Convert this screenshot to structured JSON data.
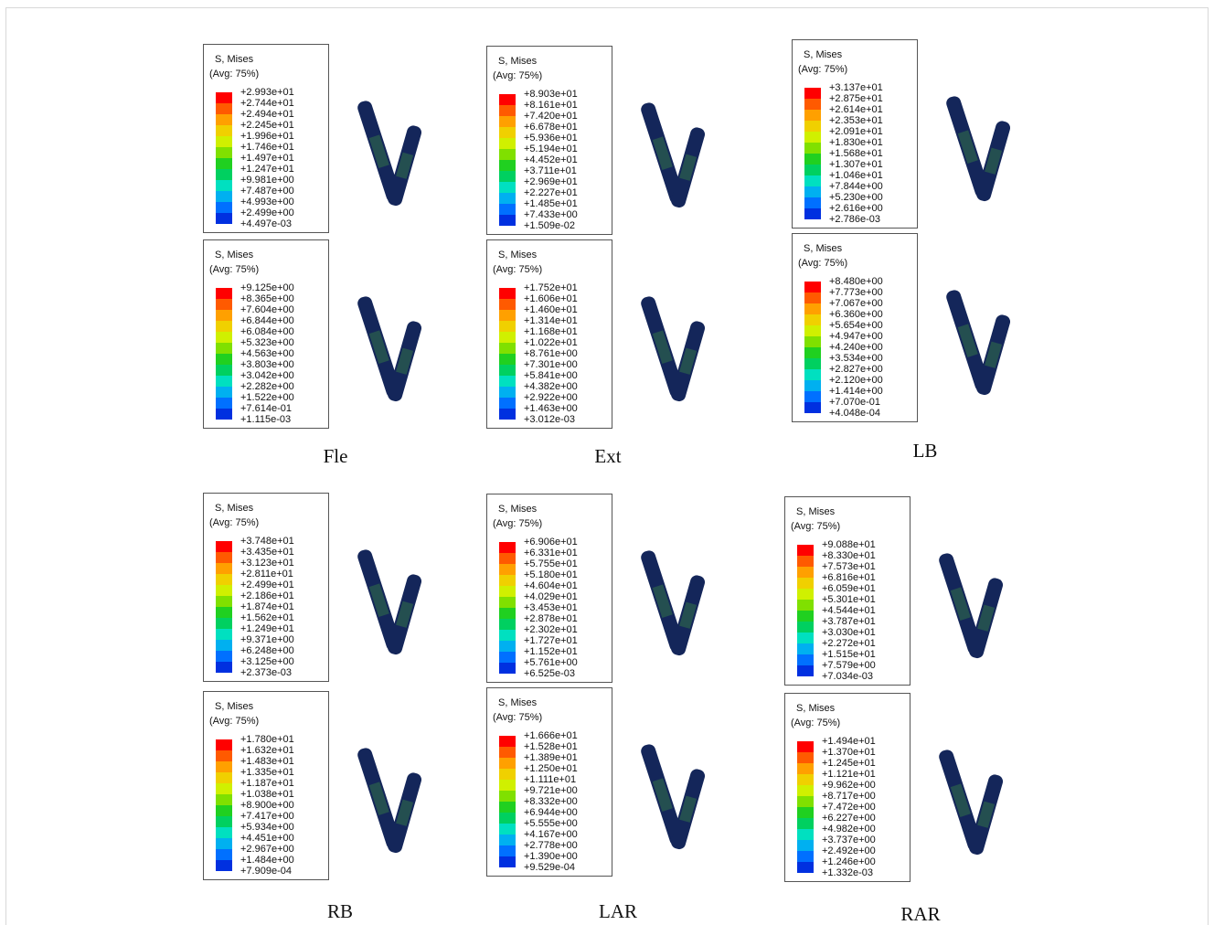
{
  "groups": [
    {
      "caption": "Fle",
      "panels": [
        {
          "title": "S, Mises",
          "avg": "(Avg: 75%)",
          "labels": [
            "+2.993e+01",
            "+2.744e+01",
            "+2.494e+01",
            "+2.245e+01",
            "+1.996e+01",
            "+1.746e+01",
            "+1.497e+01",
            "+1.247e+01",
            "+9.981e+00",
            "+7.487e+00",
            "+4.993e+00",
            "+2.499e+00",
            "+4.497e-03"
          ]
        },
        {
          "title": "S, Mises",
          "avg": "(Avg: 75%)",
          "labels": [
            "+9.125e+00",
            "+8.365e+00",
            "+7.604e+00",
            "+6.844e+00",
            "+6.084e+00",
            "+5.323e+00",
            "+4.563e+00",
            "+3.803e+00",
            "+3.042e+00",
            "+2.282e+00",
            "+1.522e+00",
            "+7.614e-01",
            "+1.115e-03"
          ]
        }
      ]
    },
    {
      "caption": "Ext",
      "panels": [
        {
          "title": "S, Mises",
          "avg": "(Avg: 75%)",
          "labels": [
            "+8.903e+01",
            "+8.161e+01",
            "+7.420e+01",
            "+6.678e+01",
            "+5.936e+01",
            "+5.194e+01",
            "+4.452e+01",
            "+3.711e+01",
            "+2.969e+01",
            "+2.227e+01",
            "+1.485e+01",
            "+7.433e+00",
            "+1.509e-02"
          ]
        },
        {
          "title": "S, Mises",
          "avg": "(Avg: 75%)",
          "labels": [
            "+1.752e+01",
            "+1.606e+01",
            "+1.460e+01",
            "+1.314e+01",
            "+1.168e+01",
            "+1.022e+01",
            "+8.761e+00",
            "+7.301e+00",
            "+5.841e+00",
            "+4.382e+00",
            "+2.922e+00",
            "+1.463e+00",
            "+3.012e-03"
          ]
        }
      ]
    },
    {
      "caption": "LB",
      "panels": [
        {
          "title": "S, Mises",
          "avg": "(Avg: 75%)",
          "labels": [
            "+3.137e+01",
            "+2.875e+01",
            "+2.614e+01",
            "+2.353e+01",
            "+2.091e+01",
            "+1.830e+01",
            "+1.568e+01",
            "+1.307e+01",
            "+1.046e+01",
            "+7.844e+00",
            "+5.230e+00",
            "+2.616e+00",
            "+2.786e-03"
          ]
        },
        {
          "title": "S, Mises",
          "avg": "(Avg: 75%)",
          "labels": [
            "+8.480e+00",
            "+7.773e+00",
            "+7.067e+00",
            "+6.360e+00",
            "+5.654e+00",
            "+4.947e+00",
            "+4.240e+00",
            "+3.534e+00",
            "+2.827e+00",
            "+2.120e+00",
            "+1.414e+00",
            "+7.070e-01",
            "+4.048e-04"
          ]
        }
      ]
    },
    {
      "caption": "RB",
      "panels": [
        {
          "title": "S, Mises",
          "avg": "(Avg: 75%)",
          "labels": [
            "+3.748e+01",
            "+3.435e+01",
            "+3.123e+01",
            "+2.811e+01",
            "+2.499e+01",
            "+2.186e+01",
            "+1.874e+01",
            "+1.562e+01",
            "+1.249e+01",
            "+9.371e+00",
            "+6.248e+00",
            "+3.125e+00",
            "+2.373e-03"
          ]
        },
        {
          "title": "S, Mises",
          "avg": "(Avg: 75%)",
          "labels": [
            "+1.780e+01",
            "+1.632e+01",
            "+1.483e+01",
            "+1.335e+01",
            "+1.187e+01",
            "+1.038e+01",
            "+8.900e+00",
            "+7.417e+00",
            "+5.934e+00",
            "+4.451e+00",
            "+2.967e+00",
            "+1.484e+00",
            "+7.909e-04"
          ]
        }
      ]
    },
    {
      "caption": "LAR",
      "panels": [
        {
          "title": "S, Mises",
          "avg": "(Avg: 75%)",
          "labels": [
            "+6.906e+01",
            "+6.331e+01",
            "+5.755e+01",
            "+5.180e+01",
            "+4.604e+01",
            "+4.029e+01",
            "+3.453e+01",
            "+2.878e+01",
            "+2.302e+01",
            "+1.727e+01",
            "+1.152e+01",
            "+5.761e+00",
            "+6.525e-03"
          ]
        },
        {
          "title": "S, Mises",
          "avg": "(Avg: 75%)",
          "labels": [
            "+1.666e+01",
            "+1.528e+01",
            "+1.389e+01",
            "+1.250e+01",
            "+1.111e+01",
            "+9.721e+00",
            "+8.332e+00",
            "+6.944e+00",
            "+5.555e+00",
            "+4.167e+00",
            "+2.778e+00",
            "+1.390e+00",
            "+9.529e-04"
          ]
        }
      ]
    },
    {
      "caption": "RAR",
      "panels": [
        {
          "title": "S, Mises",
          "avg": "(Avg: 75%)",
          "labels": [
            "+9.088e+01",
            "+8.330e+01",
            "+7.573e+01",
            "+6.816e+01",
            "+6.059e+01",
            "+5.301e+01",
            "+4.544e+01",
            "+3.787e+01",
            "+3.030e+01",
            "+2.272e+01",
            "+1.515e+01",
            "+7.579e+00",
            "+7.034e-03"
          ]
        },
        {
          "title": "S, Mises",
          "avg": "(Avg: 75%)",
          "labels": [
            "+1.494e+01",
            "+1.370e+01",
            "+1.245e+01",
            "+1.121e+01",
            "+9.962e+00",
            "+8.717e+00",
            "+7.472e+00",
            "+6.227e+00",
            "+4.982e+00",
            "+3.737e+00",
            "+2.492e+00",
            "+1.246e+00",
            "+1.332e-03"
          ]
        }
      ]
    }
  ]
}
